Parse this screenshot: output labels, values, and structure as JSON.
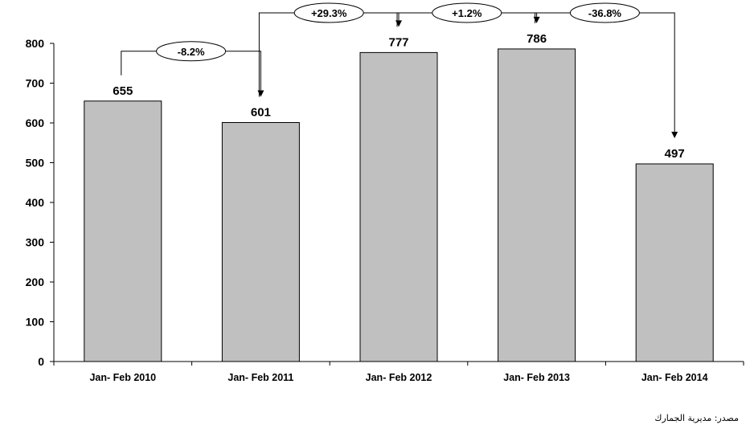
{
  "chart_data": {
    "type": "bar",
    "categories": [
      "Jan- Feb 2010",
      "Jan- Feb 2011",
      "Jan- Feb 2012",
      "Jan- Feb 2013",
      "Jan- Feb 2014"
    ],
    "values": [
      655,
      601,
      777,
      786,
      497
    ],
    "data_labels": [
      "655",
      "601",
      "777",
      "786",
      "497"
    ],
    "ylim": [
      0,
      800
    ],
    "yticks": [
      0,
      100,
      200,
      300,
      400,
      500,
      600,
      700,
      800
    ],
    "grid": false,
    "bar_color": "#c0c0c0",
    "changes": [
      "-8.2%",
      "+29.3%",
      "+1.2%",
      "-36.8%"
    ]
  },
  "source_note": "مصدر: مديرية الجمارك"
}
